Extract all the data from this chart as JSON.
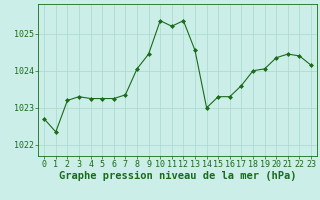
{
  "x": [
    0,
    1,
    2,
    3,
    4,
    5,
    6,
    7,
    8,
    9,
    10,
    11,
    12,
    13,
    14,
    15,
    16,
    17,
    18,
    19,
    20,
    21,
    22,
    23
  ],
  "y": [
    1022.7,
    1022.35,
    1023.2,
    1023.3,
    1023.25,
    1023.25,
    1023.25,
    1023.35,
    1024.05,
    1024.45,
    1025.35,
    1025.2,
    1025.35,
    1024.55,
    1023.0,
    1023.3,
    1023.3,
    1023.6,
    1024.0,
    1024.05,
    1024.35,
    1024.45,
    1024.4,
    1024.15
  ],
  "line_color": "#1a6b1a",
  "marker": "D",
  "marker_size": 2,
  "bg_color": "#cceee8",
  "grid_color": "#a8d8cc",
  "xlabel": "Graphe pression niveau de la mer (hPa)",
  "yticks": [
    1022,
    1023,
    1024,
    1025
  ],
  "xticks": [
    0,
    1,
    2,
    3,
    4,
    5,
    6,
    7,
    8,
    9,
    10,
    11,
    12,
    13,
    14,
    15,
    16,
    17,
    18,
    19,
    20,
    21,
    22,
    23
  ],
  "xlim": [
    -0.5,
    23.5
  ],
  "ylim": [
    1021.7,
    1025.8
  ],
  "xlabel_fontsize": 7.5,
  "tick_fontsize": 6
}
